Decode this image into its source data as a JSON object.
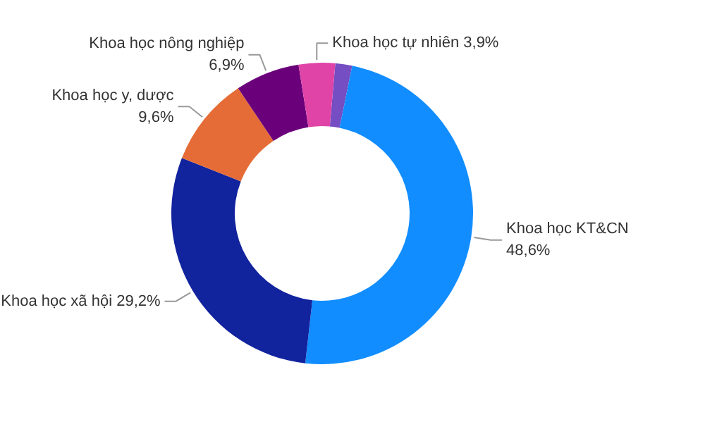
{
  "chart_data": {
    "type": "donut",
    "categories": [
      null,
      "Khoa học KT&CN",
      "Khoa học xã hội",
      "Khoa học y, dược",
      "Khoa học nông nghiệp",
      "Khoa học tự nhiên"
    ],
    "values": [
      1.8,
      48.6,
      29.2,
      9.6,
      6.9,
      3.9
    ],
    "value_labels": [
      null,
      "48,6%",
      "29,2%",
      "9,6%",
      "6,9%",
      "3,9%"
    ],
    "colors": [
      "#744ec2",
      "#118dff",
      "#12239e",
      "#e66c37",
      "#6b007b",
      "#e044a7"
    ]
  }
}
